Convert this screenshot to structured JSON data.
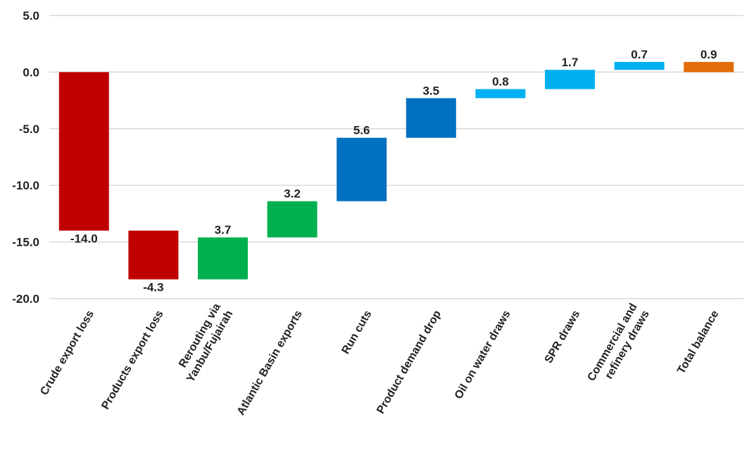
{
  "chart_data": {
    "type": "bar",
    "subtype": "waterfall",
    "title": "",
    "xlabel": "",
    "ylabel": "",
    "ylim": [
      -20,
      5
    ],
    "y_ticks": [
      5,
      0,
      -5,
      -10,
      -15,
      -20
    ],
    "y_tick_labels": [
      "5.0",
      "0.0",
      "-5.0",
      "-10.0",
      "-15.0",
      "-20.0"
    ],
    "grid": true,
    "legend": "none",
    "categories": [
      "Crude export loss",
      "Products export loss",
      "Rerouting via Yanbu/Fujairah",
      "Atlantic Basin exports",
      "Run cuts",
      "Product demand drop",
      "Oil on water draws",
      "SPR draws",
      "Commercial and refinery draws",
      "Total balance"
    ],
    "category_label_lines": [
      [
        "Crude export loss"
      ],
      [
        "Products export loss"
      ],
      [
        "Rerouting via",
        "Yanbu/Fujairah"
      ],
      [
        "Atlantic Basin exports"
      ],
      [
        "Run cuts"
      ],
      [
        "Product demand drop"
      ],
      [
        "Oil on water draws"
      ],
      [
        "SPR draws"
      ],
      [
        "Commercial and",
        "refinery draws"
      ],
      [
        "Total balance"
      ]
    ],
    "values": [
      -14.0,
      -4.3,
      3.7,
      3.2,
      5.6,
      3.5,
      0.8,
      1.7,
      0.7,
      0.9
    ],
    "value_labels": [
      "-14.0",
      "-4.3",
      "3.7",
      "3.2",
      "5.6",
      "3.5",
      "0.8",
      "1.7",
      "0.7",
      "0.9"
    ],
    "bar_starts": [
      0,
      -14.0,
      -18.3,
      -14.6,
      -11.4,
      -5.8,
      -2.3,
      -1.5,
      0.2,
      0.9
    ],
    "bar_ends": [
      -14.0,
      -18.3,
      -14.6,
      -11.4,
      -5.8,
      -2.3,
      -1.5,
      0.2,
      0.9,
      0.0
    ],
    "colors": [
      "#c00000",
      "#c00000",
      "#00b050",
      "#00b050",
      "#0070c0",
      "#0070c0",
      "#00b0f0",
      "#00b0f0",
      "#00b0f0",
      "#e46c0a"
    ]
  }
}
